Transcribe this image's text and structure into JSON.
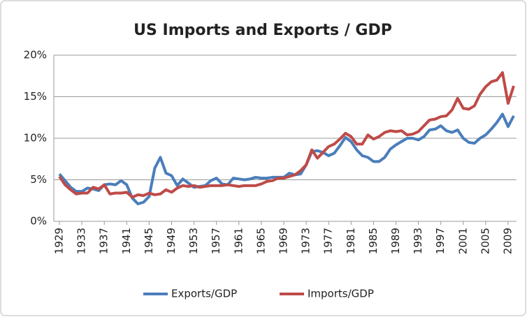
{
  "chart_data": {
    "type": "line",
    "title": "US Imports and Exports / GDP",
    "x": [
      1929,
      1930,
      1931,
      1932,
      1933,
      1934,
      1935,
      1936,
      1937,
      1938,
      1939,
      1940,
      1941,
      1942,
      1943,
      1944,
      1945,
      1946,
      1947,
      1948,
      1949,
      1950,
      1951,
      1952,
      1953,
      1954,
      1955,
      1956,
      1957,
      1958,
      1959,
      1960,
      1961,
      1962,
      1963,
      1964,
      1965,
      1966,
      1967,
      1968,
      1969,
      1970,
      1971,
      1972,
      1973,
      1974,
      1975,
      1976,
      1977,
      1978,
      1979,
      1980,
      1981,
      1982,
      1983,
      1984,
      1985,
      1986,
      1987,
      1988,
      1989,
      1990,
      1991,
      1992,
      1993,
      1994,
      1995,
      1996,
      1997,
      1998,
      1999,
      2000,
      2001,
      2002,
      2003,
      2004,
      2005,
      2006,
      2007,
      2008,
      2009,
      2010
    ],
    "series": [
      {
        "name": "Exports/GDP",
        "color": "#4a7ebb",
        "values": [
          5.7,
          4.9,
          4.1,
          3.6,
          3.6,
          4.0,
          3.9,
          3.7,
          4.4,
          4.5,
          4.4,
          4.9,
          4.4,
          2.8,
          2.1,
          2.3,
          3.0,
          6.4,
          7.7,
          5.8,
          5.5,
          4.3,
          5.1,
          4.6,
          4.1,
          4.2,
          4.3,
          4.9,
          5.2,
          4.5,
          4.4,
          5.2,
          5.1,
          5.0,
          5.1,
          5.3,
          5.2,
          5.2,
          5.3,
          5.3,
          5.3,
          5.8,
          5.6,
          5.7,
          6.8,
          8.4,
          8.5,
          8.3,
          7.9,
          8.2,
          9.1,
          10.1,
          9.6,
          8.6,
          7.9,
          7.7,
          7.2,
          7.2,
          7.7,
          8.7,
          9.2,
          9.6,
          10.0,
          10.0,
          9.8,
          10.2,
          11.0,
          11.1,
          11.5,
          10.9,
          10.7,
          11.0,
          10.0,
          9.5,
          9.4,
          10.0,
          10.4,
          11.1,
          11.9,
          12.9,
          11.4,
          12.7
        ]
      },
      {
        "name": "Imports/GDP",
        "color": "#be4b48",
        "values": [
          5.4,
          4.4,
          3.8,
          3.3,
          3.4,
          3.4,
          4.1,
          3.9,
          4.4,
          3.3,
          3.4,
          3.4,
          3.5,
          2.9,
          3.2,
          3.1,
          3.4,
          3.2,
          3.3,
          3.8,
          3.5,
          4.0,
          4.3,
          4.2,
          4.3,
          4.1,
          4.2,
          4.3,
          4.3,
          4.3,
          4.4,
          4.3,
          4.2,
          4.3,
          4.3,
          4.3,
          4.5,
          4.8,
          4.9,
          5.2,
          5.2,
          5.4,
          5.6,
          6.1,
          6.8,
          8.6,
          7.6,
          8.3,
          9.0,
          9.3,
          9.9,
          10.6,
          10.2,
          9.3,
          9.3,
          10.4,
          9.9,
          10.2,
          10.7,
          10.9,
          10.8,
          10.9,
          10.4,
          10.5,
          10.8,
          11.5,
          12.2,
          12.3,
          12.6,
          12.7,
          13.4,
          14.8,
          13.6,
          13.5,
          13.9,
          15.3,
          16.2,
          16.8,
          17.0,
          17.9,
          14.2,
          16.3
        ]
      }
    ],
    "xlim": [
      1928,
      2010.5
    ],
    "xticks": [
      1929,
      1933,
      1937,
      1941,
      1945,
      1949,
      1953,
      1957,
      1961,
      1965,
      1969,
      1973,
      1977,
      1981,
      1985,
      1989,
      1993,
      1997,
      2001,
      2005,
      2009
    ],
    "ylim": [
      0,
      20
    ],
    "yticks": [
      {
        "value": 0,
        "label": "0%"
      },
      {
        "value": 5,
        "label": "5%"
      },
      {
        "value": 10,
        "label": "10%"
      },
      {
        "value": 15,
        "label": "15%"
      },
      {
        "value": 20,
        "label": "20%"
      }
    ],
    "grid": true,
    "legend": "bottom"
  }
}
